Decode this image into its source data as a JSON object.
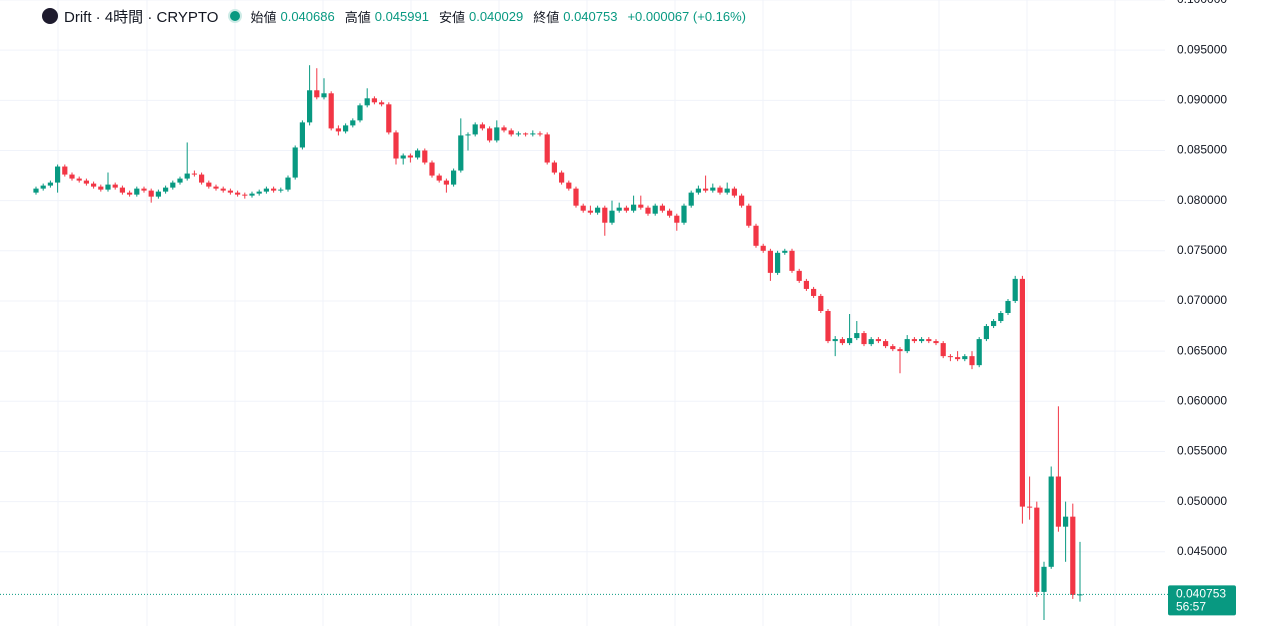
{
  "chart_data": {
    "type": "candlestick",
    "title": "Drift · 4時間 · CRYPTO",
    "ohlc_labels": [
      "始値",
      "高値",
      "安値",
      "終値"
    ],
    "change": "+0.000067 (+0.16%)",
    "countdown": "56:57",
    "up_color": "#089981",
    "down_color": "#f23645",
    "grid": true,
    "ylim": [
      0.0376,
      0.1
    ],
    "yticks": [
      {
        "value": 0.1,
        "label": "0.100000"
      },
      {
        "value": 0.095,
        "label": "0.095000"
      },
      {
        "value": 0.09,
        "label": "0.090000"
      },
      {
        "value": 0.085,
        "label": "0.085000"
      },
      {
        "value": 0.08,
        "label": "0.080000"
      },
      {
        "value": 0.075,
        "label": "0.075000"
      },
      {
        "value": 0.07,
        "label": "0.070000"
      },
      {
        "value": 0.065,
        "label": "0.065000"
      },
      {
        "value": 0.06,
        "label": "0.060000"
      },
      {
        "value": 0.055,
        "label": "0.055000"
      },
      {
        "value": 0.05,
        "label": "0.050000"
      },
      {
        "value": 0.045,
        "label": "0.045000"
      }
    ],
    "ohlc": [
      [
        0.0808,
        0.0814,
        0.0806,
        0.0812
      ],
      [
        0.0812,
        0.0817,
        0.081,
        0.0815
      ],
      [
        0.0815,
        0.082,
        0.0813,
        0.0818
      ],
      [
        0.0818,
        0.0836,
        0.0808,
        0.0834
      ],
      [
        0.0834,
        0.0836,
        0.0824,
        0.0826
      ],
      [
        0.0826,
        0.0828,
        0.082,
        0.0822
      ],
      [
        0.0822,
        0.0824,
        0.0818,
        0.082
      ],
      [
        0.082,
        0.0822,
        0.0815,
        0.0817
      ],
      [
        0.0817,
        0.0819,
        0.0812,
        0.0814
      ],
      [
        0.0814,
        0.0816,
        0.0809,
        0.0811
      ],
      [
        0.0811,
        0.0828,
        0.0809,
        0.0816
      ],
      [
        0.0816,
        0.0818,
        0.0811,
        0.0813
      ],
      [
        0.0813,
        0.0815,
        0.0806,
        0.0808
      ],
      [
        0.0808,
        0.081,
        0.0804,
        0.0806
      ],
      [
        0.0806,
        0.0814,
        0.0804,
        0.0812
      ],
      [
        0.0812,
        0.0814,
        0.0808,
        0.081
      ],
      [
        0.081,
        0.0812,
        0.0798,
        0.0804
      ],
      [
        0.0804,
        0.0811,
        0.0802,
        0.0809
      ],
      [
        0.0809,
        0.0815,
        0.0807,
        0.0813
      ],
      [
        0.0813,
        0.082,
        0.0811,
        0.0818
      ],
      [
        0.0818,
        0.0824,
        0.0816,
        0.0822
      ],
      [
        0.0822,
        0.0858,
        0.082,
        0.0827
      ],
      [
        0.0827,
        0.083,
        0.0824,
        0.0826
      ],
      [
        0.0826,
        0.0828,
        0.0816,
        0.0818
      ],
      [
        0.0818,
        0.082,
        0.0812,
        0.0814
      ],
      [
        0.0814,
        0.0816,
        0.081,
        0.0812
      ],
      [
        0.0812,
        0.0814,
        0.0808,
        0.081
      ],
      [
        0.081,
        0.0812,
        0.0806,
        0.0808
      ],
      [
        0.0808,
        0.081,
        0.0804,
        0.0806
      ],
      [
        0.0806,
        0.0808,
        0.0802,
        0.0805
      ],
      [
        0.0805,
        0.0809,
        0.0803,
        0.0807
      ],
      [
        0.0807,
        0.0811,
        0.0805,
        0.0809
      ],
      [
        0.0809,
        0.0814,
        0.0807,
        0.0812
      ],
      [
        0.0812,
        0.0814,
        0.0808,
        0.081
      ],
      [
        0.081,
        0.0813,
        0.0808,
        0.0811
      ],
      [
        0.0811,
        0.0825,
        0.0809,
        0.0823
      ],
      [
        0.0823,
        0.0855,
        0.0821,
        0.0853
      ],
      [
        0.0853,
        0.088,
        0.0851,
        0.0878
      ],
      [
        0.0878,
        0.0935,
        0.0875,
        0.091
      ],
      [
        0.091,
        0.0932,
        0.0901,
        0.0903
      ],
      [
        0.0903,
        0.0922,
        0.0901,
        0.0907
      ],
      [
        0.0907,
        0.0909,
        0.087,
        0.0872
      ],
      [
        0.0872,
        0.0875,
        0.0865,
        0.0869
      ],
      [
        0.0869,
        0.0877,
        0.0867,
        0.0875
      ],
      [
        0.0875,
        0.0882,
        0.0873,
        0.088
      ],
      [
        0.088,
        0.0897,
        0.0878,
        0.0895
      ],
      [
        0.0895,
        0.0912,
        0.0893,
        0.0902
      ],
      [
        0.0902,
        0.0904,
        0.0896,
        0.0898
      ],
      [
        0.0898,
        0.09,
        0.0894,
        0.0896
      ],
      [
        0.0896,
        0.0898,
        0.0866,
        0.0868
      ],
      [
        0.0868,
        0.087,
        0.0836,
        0.0842
      ],
      [
        0.0842,
        0.0847,
        0.0836,
        0.0845
      ],
      [
        0.0845,
        0.0847,
        0.0838,
        0.0843
      ],
      [
        0.0843,
        0.0852,
        0.0841,
        0.085
      ],
      [
        0.085,
        0.0852,
        0.0836,
        0.0838
      ],
      [
        0.0838,
        0.084,
        0.0823,
        0.0825
      ],
      [
        0.0825,
        0.0827,
        0.0818,
        0.082
      ],
      [
        0.082,
        0.0822,
        0.0808,
        0.0816
      ],
      [
        0.0816,
        0.0832,
        0.0814,
        0.083
      ],
      [
        0.083,
        0.0882,
        0.0828,
        0.0865
      ],
      [
        0.0865,
        0.0868,
        0.085,
        0.0866
      ],
      [
        0.0866,
        0.0878,
        0.0864,
        0.0876
      ],
      [
        0.0876,
        0.0878,
        0.087,
        0.0872
      ],
      [
        0.0872,
        0.0874,
        0.0858,
        0.086
      ],
      [
        0.086,
        0.088,
        0.0858,
        0.0873
      ],
      [
        0.0873,
        0.0875,
        0.0868,
        0.087
      ],
      [
        0.087,
        0.0872,
        0.0864,
        0.0866
      ],
      [
        0.0866,
        0.0869,
        0.0864,
        0.0867
      ],
      [
        0.0867,
        0.0868,
        0.0864,
        0.0866
      ],
      [
        0.0866,
        0.087,
        0.0864,
        0.0867
      ],
      [
        0.0867,
        0.0869,
        0.0864,
        0.0866
      ],
      [
        0.0866,
        0.0868,
        0.0836,
        0.0838
      ],
      [
        0.0838,
        0.084,
        0.0826,
        0.0828
      ],
      [
        0.0828,
        0.083,
        0.0816,
        0.0818
      ],
      [
        0.0818,
        0.082,
        0.081,
        0.0812
      ],
      [
        0.0812,
        0.0814,
        0.0793,
        0.0795
      ],
      [
        0.0795,
        0.0797,
        0.0788,
        0.079
      ],
      [
        0.079,
        0.0795,
        0.0786,
        0.0788
      ],
      [
        0.0788,
        0.0795,
        0.0786,
        0.0793
      ],
      [
        0.0793,
        0.0795,
        0.0765,
        0.0778
      ],
      [
        0.0778,
        0.08,
        0.0776,
        0.079
      ],
      [
        0.079,
        0.0798,
        0.0788,
        0.0793
      ],
      [
        0.0793,
        0.0795,
        0.0788,
        0.079
      ],
      [
        0.079,
        0.0805,
        0.0788,
        0.0796
      ],
      [
        0.0796,
        0.0805,
        0.0791,
        0.0793
      ],
      [
        0.0793,
        0.0795,
        0.0785,
        0.0787
      ],
      [
        0.0787,
        0.0797,
        0.0785,
        0.0795
      ],
      [
        0.0795,
        0.0797,
        0.0788,
        0.079
      ],
      [
        0.079,
        0.0792,
        0.0783,
        0.0785
      ],
      [
        0.0785,
        0.0787,
        0.077,
        0.0778
      ],
      [
        0.0778,
        0.0797,
        0.0776,
        0.0795
      ],
      [
        0.0795,
        0.081,
        0.0793,
        0.0808
      ],
      [
        0.0808,
        0.0815,
        0.0806,
        0.0812
      ],
      [
        0.0812,
        0.0825,
        0.0808,
        0.081
      ],
      [
        0.081,
        0.0817,
        0.0808,
        0.0813
      ],
      [
        0.0813,
        0.0815,
        0.0806,
        0.0808
      ],
      [
        0.0808,
        0.0818,
        0.0806,
        0.0812
      ],
      [
        0.0812,
        0.0814,
        0.0803,
        0.0805
      ],
      [
        0.0805,
        0.0807,
        0.0793,
        0.0795
      ],
      [
        0.0795,
        0.0797,
        0.0773,
        0.0775
      ],
      [
        0.0775,
        0.0777,
        0.0753,
        0.0755
      ],
      [
        0.0755,
        0.0757,
        0.0748,
        0.075
      ],
      [
        0.075,
        0.0752,
        0.072,
        0.0728
      ],
      [
        0.0728,
        0.075,
        0.0726,
        0.0748
      ],
      [
        0.0748,
        0.0752,
        0.0746,
        0.075
      ],
      [
        0.075,
        0.0752,
        0.0728,
        0.073
      ],
      [
        0.073,
        0.0732,
        0.0718,
        0.072
      ],
      [
        0.072,
        0.0722,
        0.071,
        0.0712
      ],
      [
        0.0712,
        0.0714,
        0.0703,
        0.0705
      ],
      [
        0.0705,
        0.0707,
        0.0688,
        0.069
      ],
      [
        0.069,
        0.0692,
        0.0658,
        0.066
      ],
      [
        0.066,
        0.0665,
        0.0645,
        0.0662
      ],
      [
        0.0662,
        0.0664,
        0.0656,
        0.0658
      ],
      [
        0.0658,
        0.0687,
        0.0656,
        0.0663
      ],
      [
        0.0663,
        0.068,
        0.0661,
        0.0668
      ],
      [
        0.0668,
        0.067,
        0.0655,
        0.0657
      ],
      [
        0.0657,
        0.0664,
        0.0655,
        0.0662
      ],
      [
        0.0662,
        0.0664,
        0.0658,
        0.066
      ],
      [
        0.066,
        0.0662,
        0.0653,
        0.0655
      ],
      [
        0.0655,
        0.0657,
        0.065,
        0.0652
      ],
      [
        0.0652,
        0.0654,
        0.0628,
        0.065
      ],
      [
        0.065,
        0.0666,
        0.0648,
        0.0662
      ],
      [
        0.0662,
        0.0664,
        0.0658,
        0.066
      ],
      [
        0.066,
        0.0664,
        0.0658,
        0.0662
      ],
      [
        0.0662,
        0.0664,
        0.0658,
        0.066
      ],
      [
        0.066,
        0.0662,
        0.0656,
        0.0658
      ],
      [
        0.0658,
        0.066,
        0.0643,
        0.0645
      ],
      [
        0.0645,
        0.0647,
        0.064,
        0.0644
      ],
      [
        0.0644,
        0.065,
        0.064,
        0.0642
      ],
      [
        0.0642,
        0.0647,
        0.064,
        0.0645
      ],
      [
        0.0645,
        0.065,
        0.0632,
        0.0636
      ],
      [
        0.0636,
        0.0664,
        0.0634,
        0.0662
      ],
      [
        0.0662,
        0.0677,
        0.066,
        0.0675
      ],
      [
        0.0675,
        0.0682,
        0.0673,
        0.068
      ],
      [
        0.068,
        0.069,
        0.0678,
        0.0688
      ],
      [
        0.0688,
        0.0702,
        0.0686,
        0.07
      ],
      [
        0.07,
        0.0725,
        0.0698,
        0.0722
      ],
      [
        0.0722,
        0.0725,
        0.0478,
        0.0495
      ],
      [
        0.0495,
        0.0525,
        0.0482,
        0.0494
      ],
      [
        0.0494,
        0.05,
        0.0405,
        0.041
      ],
      [
        0.041,
        0.044,
        0.0382,
        0.0435
      ],
      [
        0.0435,
        0.0535,
        0.0433,
        0.0525
      ],
      [
        0.0525,
        0.0595,
        0.047,
        0.0475
      ],
      [
        0.0475,
        0.05,
        0.044,
        0.0485
      ],
      [
        0.0485,
        0.0498,
        0.0403,
        0.0407
      ],
      [
        0.040686,
        0.045991,
        0.040029,
        0.040753
      ]
    ]
  }
}
